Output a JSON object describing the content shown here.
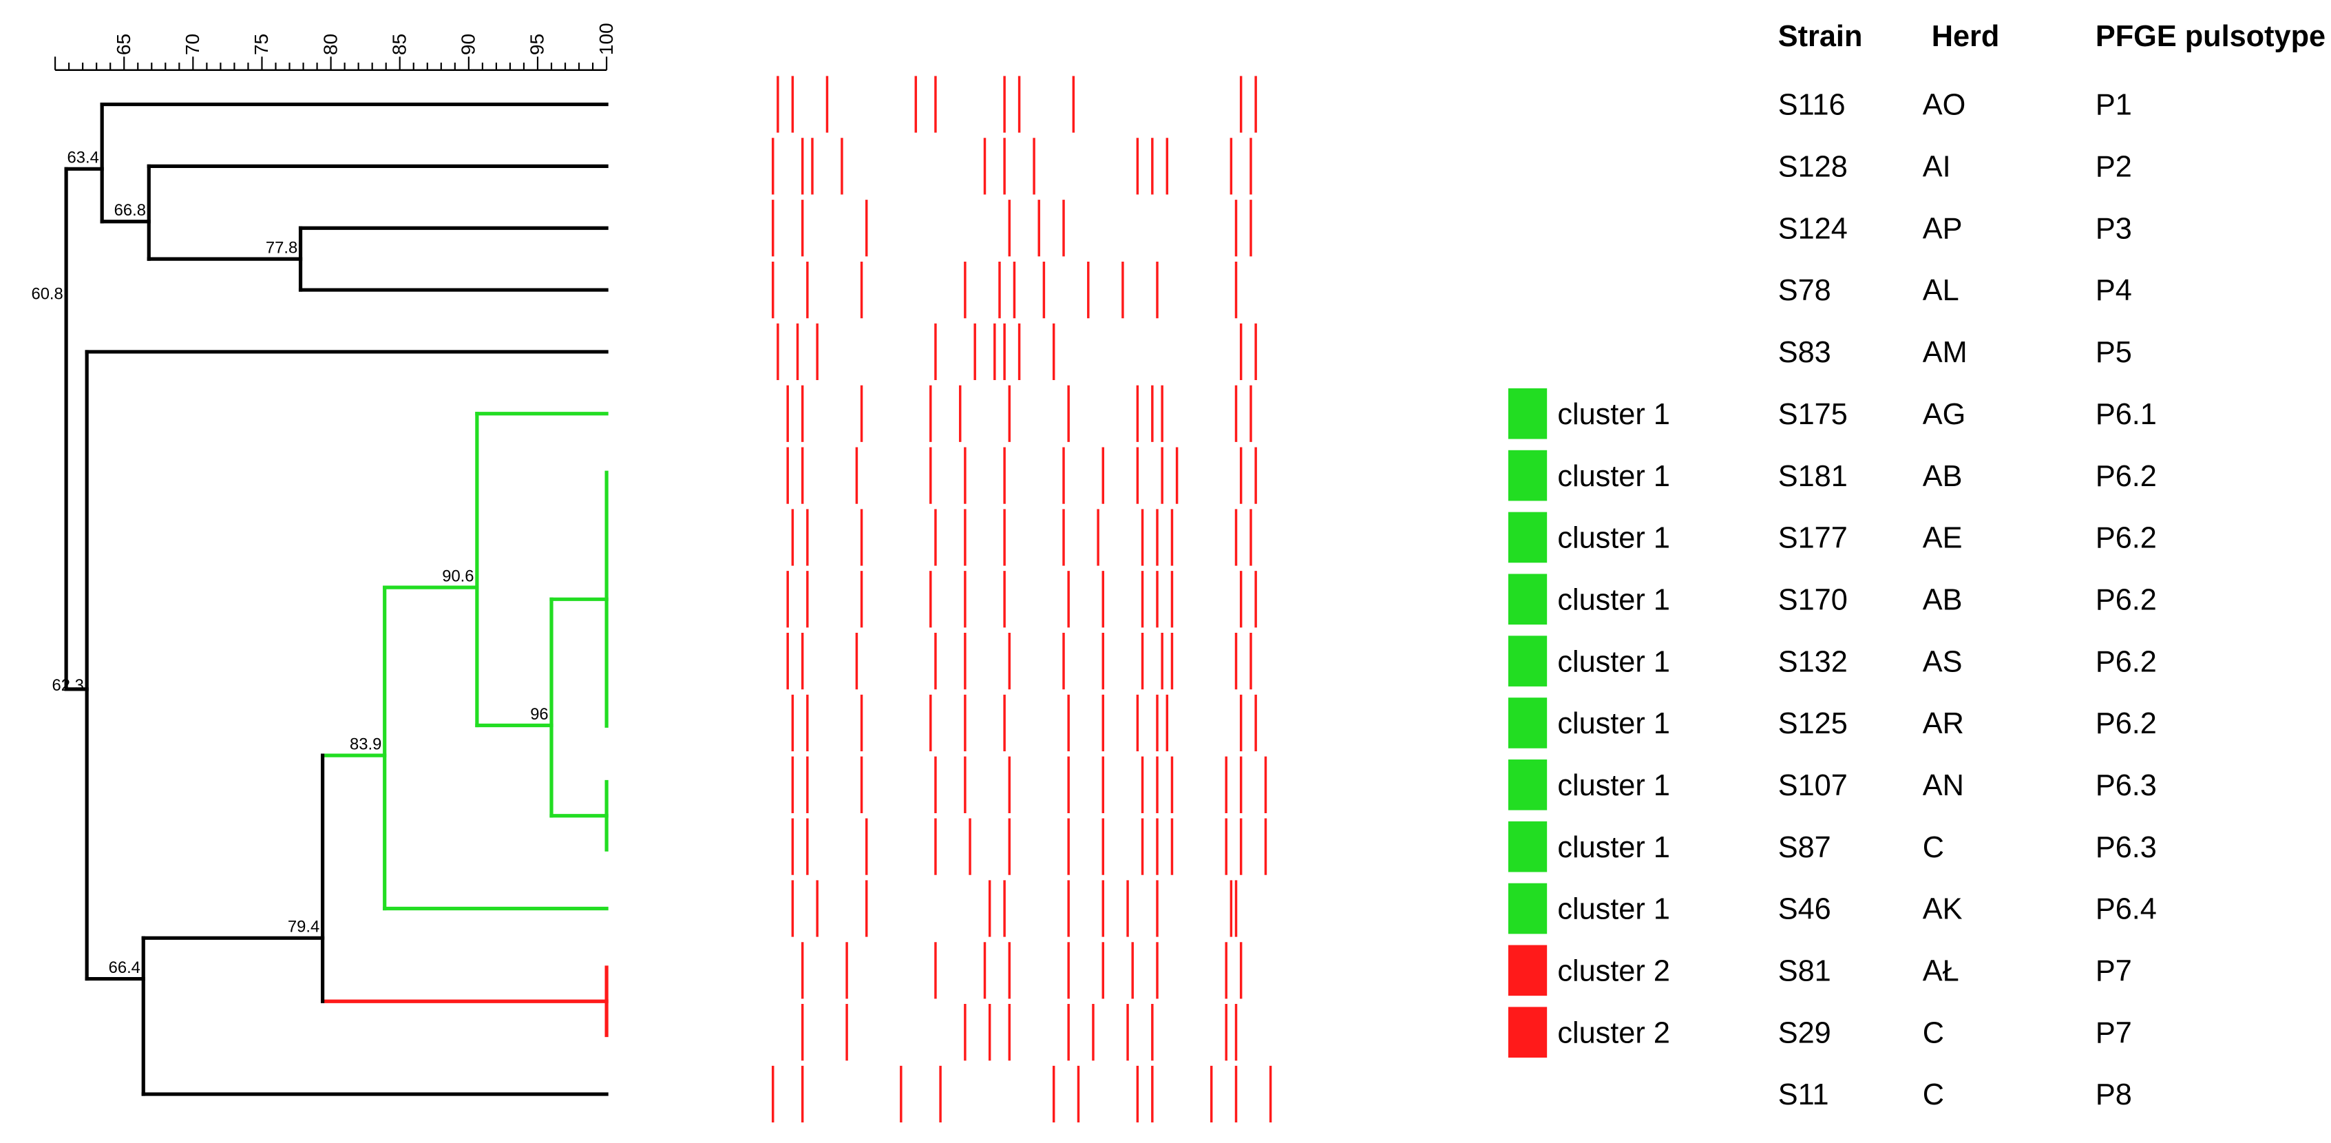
{
  "scale": {
    "ticks": [
      "65",
      "70",
      "75",
      "80",
      "85",
      "90",
      "95",
      "100"
    ],
    "min": 60,
    "max": 100
  },
  "colors": {
    "tree_default": "#000000",
    "cluster_1": "#22dd22",
    "cluster_2": "#ff1a1a",
    "band": "#ff1a1a"
  },
  "headers": {
    "strain": "Strain",
    "herd": "Herd",
    "pulsotype": "PFGE pulsotype"
  },
  "nodes": [
    {
      "value": 63.4,
      "label": "63.4"
    },
    {
      "value": 66.8,
      "label": "66.8"
    },
    {
      "value": 77.8,
      "label": "77.8"
    },
    {
      "value": 60.8,
      "label": "60.8"
    },
    {
      "value": 62.3,
      "label": "62.3"
    },
    {
      "value": 90.6,
      "label": "90.6"
    },
    {
      "value": 96.0,
      "label": "96.0"
    },
    {
      "value": 83.9,
      "label": "83.9"
    },
    {
      "value": 79.4,
      "label": "79.4"
    },
    {
      "value": 66.4,
      "label": "66.4"
    }
  ],
  "rows": [
    {
      "strain": "S116",
      "herd": "AO",
      "pulsotype": "P1",
      "cluster": "",
      "bands": [
        0.03,
        0.06,
        0.13,
        0.31,
        0.35,
        0.49,
        0.52,
        0.63,
        0.97,
        1.0
      ]
    },
    {
      "strain": "S128",
      "herd": "AI",
      "pulsotype": "P2",
      "cluster": "",
      "bands": [
        0.02,
        0.08,
        0.1,
        0.16,
        0.45,
        0.49,
        0.55,
        0.76,
        0.79,
        0.82,
        0.95,
        0.99
      ]
    },
    {
      "strain": "S124",
      "herd": "AP",
      "pulsotype": "P3",
      "cluster": "",
      "bands": [
        0.02,
        0.08,
        0.21,
        0.5,
        0.56,
        0.61,
        0.96,
        0.99
      ]
    },
    {
      "strain": "S78",
      "herd": "AL",
      "pulsotype": "P4",
      "cluster": "",
      "bands": [
        0.02,
        0.09,
        0.2,
        0.41,
        0.48,
        0.51,
        0.57,
        0.66,
        0.73,
        0.8,
        0.96
      ]
    },
    {
      "strain": "S83",
      "herd": "AM",
      "pulsotype": "P5",
      "cluster": "",
      "bands": [
        0.03,
        0.07,
        0.11,
        0.35,
        0.43,
        0.47,
        0.49,
        0.52,
        0.59,
        0.97,
        1.0
      ]
    },
    {
      "strain": "S175",
      "herd": "AG",
      "pulsotype": "P6.1",
      "cluster": "cluster 1",
      "bands": [
        0.05,
        0.08,
        0.2,
        0.34,
        0.4,
        0.5,
        0.62,
        0.76,
        0.79,
        0.81,
        0.96,
        0.99
      ]
    },
    {
      "strain": "S181",
      "herd": "AB",
      "pulsotype": "P6.2",
      "cluster": "cluster 1",
      "bands": [
        0.05,
        0.08,
        0.19,
        0.34,
        0.41,
        0.49,
        0.61,
        0.69,
        0.76,
        0.81,
        0.84,
        0.97,
        1.0
      ]
    },
    {
      "strain": "S177",
      "herd": "AE",
      "pulsotype": "P6.2",
      "cluster": "cluster 1",
      "bands": [
        0.06,
        0.09,
        0.2,
        0.35,
        0.41,
        0.49,
        0.61,
        0.68,
        0.77,
        0.8,
        0.83,
        0.96,
        0.99
      ]
    },
    {
      "strain": "S170",
      "herd": "AB",
      "pulsotype": "P6.2",
      "cluster": "cluster 1",
      "bands": [
        0.05,
        0.09,
        0.2,
        0.34,
        0.41,
        0.49,
        0.62,
        0.69,
        0.77,
        0.8,
        0.83,
        0.97,
        1.0
      ]
    },
    {
      "strain": "S132",
      "herd": "AS",
      "pulsotype": "P6.2",
      "cluster": "cluster 1",
      "bands": [
        0.05,
        0.08,
        0.19,
        0.35,
        0.41,
        0.5,
        0.61,
        0.69,
        0.77,
        0.81,
        0.83,
        0.96,
        0.99
      ]
    },
    {
      "strain": "S125",
      "herd": "AR",
      "pulsotype": "P6.2",
      "cluster": "cluster 1",
      "bands": [
        0.06,
        0.09,
        0.2,
        0.34,
        0.41,
        0.49,
        0.62,
        0.69,
        0.76,
        0.8,
        0.82,
        0.97,
        1.0
      ]
    },
    {
      "strain": "S107",
      "herd": "AN",
      "pulsotype": "P6.3",
      "cluster": "cluster 1",
      "bands": [
        0.06,
        0.09,
        0.2,
        0.35,
        0.41,
        0.5,
        0.62,
        0.69,
        0.77,
        0.8,
        0.83,
        0.94,
        0.97,
        1.02
      ]
    },
    {
      "strain": "S87",
      "herd": "C",
      "pulsotype": "P6.3",
      "cluster": "cluster 1",
      "bands": [
        0.06,
        0.09,
        0.21,
        0.35,
        0.42,
        0.5,
        0.62,
        0.69,
        0.77,
        0.8,
        0.83,
        0.94,
        0.97,
        1.02
      ]
    },
    {
      "strain": "S46",
      "herd": "AK",
      "pulsotype": "P6.4",
      "cluster": "cluster 1",
      "bands": [
        0.06,
        0.11,
        0.21,
        0.46,
        0.49,
        0.62,
        0.69,
        0.74,
        0.8,
        0.95,
        0.96
      ]
    },
    {
      "strain": "S81",
      "herd": "AŁ",
      "pulsotype": "P7",
      "cluster": "cluster 2",
      "bands": [
        0.08,
        0.17,
        0.35,
        0.45,
        0.5,
        0.62,
        0.69,
        0.75,
        0.8,
        0.94,
        0.97
      ]
    },
    {
      "strain": "S29",
      "herd": "C",
      "pulsotype": "P7",
      "cluster": "cluster 2",
      "bands": [
        0.08,
        0.17,
        0.41,
        0.46,
        0.5,
        0.62,
        0.67,
        0.74,
        0.79,
        0.94,
        0.96
      ]
    },
    {
      "strain": "S11",
      "herd": "C",
      "pulsotype": "P8",
      "cluster": "",
      "bands": [
        0.02,
        0.08,
        0.28,
        0.36,
        0.59,
        0.64,
        0.76,
        0.79,
        0.91,
        0.96,
        1.03
      ]
    }
  ]
}
